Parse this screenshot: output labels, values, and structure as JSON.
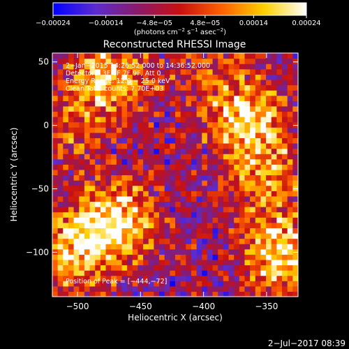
{
  "chart_data": {
    "type": "heatmap",
    "title": "Reconstructed RHESSI Image",
    "xlabel": "Heliocentric X (arcsec)",
    "ylabel": "Heliocentric Y (arcsec)",
    "xlim": [
      -520,
      -325
    ],
    "ylim": [
      -135,
      57
    ],
    "x_ticks": [
      -500,
      -450,
      -400,
      -350
    ],
    "x_tick_labels": [
      "−500",
      "−450",
      "−400",
      "−350"
    ],
    "y_ticks": [
      50,
      0,
      -50,
      -100
    ],
    "y_tick_labels": [
      "50",
      "0",
      "−50",
      "−100"
    ],
    "colorbar": {
      "range": [
        -0.00024,
        0.00024
      ],
      "ticks": [
        -0.00024,
        -0.00014,
        -4.8e-05,
        4.8e-05,
        0.00014,
        0.00024
      ],
      "tick_labels": [
        "−0.00024",
        "−0.00014",
        "−4.8e−05",
        "4.8e−05",
        "0.00014",
        "0.00024"
      ],
      "colors": [
        "#0000ff",
        "#5b2ccf",
        "#8b1a6b",
        "#c81010",
        "#ff6000",
        "#ffd000",
        "#ffffff"
      ],
      "unit_main": "(photons cm",
      "unit_exp1": "−2",
      "unit_mid": " s",
      "unit_exp2": "−1",
      "unit_mid2": " asec",
      "unit_exp3": "−2",
      "unit_end": ")"
    },
    "info": {
      "line1": "2−Jan−2015 14:26:52.000 to 14:36:52.000",
      "line2": "Detectors: 3F 6F 7F 9F, Att 0",
      "line3": "Energy Range: 12.0 − 25.0 keV",
      "line4": "Clean    Total counts: 7.70E+03"
    },
    "peak_label": "Position of Peak = [−444,−72]",
    "peak": [
      -444,
      -72
    ],
    "sources": [
      {
        "x": -475,
        "y": 37,
        "amp": 0.00026
      },
      {
        "x": -470,
        "y": -75,
        "amp": 0.0003
      },
      {
        "x": -505,
        "y": -100,
        "amp": 0.00022
      },
      {
        "x": -510,
        "y": -5,
        "amp": 0.00012
      },
      {
        "x": -365,
        "y": 5,
        "amp": 0.00026
      },
      {
        "x": -352,
        "y": -40,
        "amp": 0.00018
      },
      {
        "x": -340,
        "y": -100,
        "amp": 0.00028
      },
      {
        "x": -395,
        "y": 45,
        "amp": 0.0001
      }
    ],
    "background": -8e-05
  },
  "footer": {
    "date": "2−Jul−2017 08:39"
  }
}
